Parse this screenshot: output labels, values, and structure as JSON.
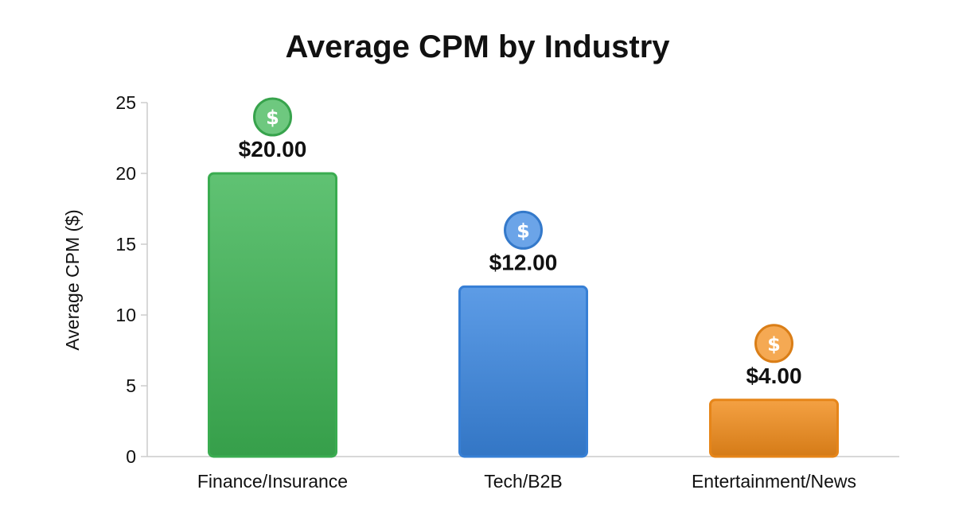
{
  "chart_data": {
    "type": "bar",
    "title": "Average CPM by Industry",
    "xlabel": "",
    "ylabel": "Average CPM ($)",
    "ylim": [
      0,
      25
    ],
    "yticks": [
      0,
      5,
      10,
      15,
      20,
      25
    ],
    "grid": false,
    "legend": "none",
    "categories": [
      "Finance/Insurance",
      "Tech/B2B",
      "Entertainment/News"
    ],
    "values": [
      20,
      12,
      4
    ],
    "value_labels": [
      "$20.00",
      "$12.00",
      "$4.00"
    ],
    "colors": [
      "#3db554",
      "#3a86e0",
      "#f28c1a"
    ],
    "icons": [
      "dollar-coin-icon",
      "dollar-coin-icon",
      "dollar-coin-icon"
    ],
    "icon_glyph": "$"
  }
}
